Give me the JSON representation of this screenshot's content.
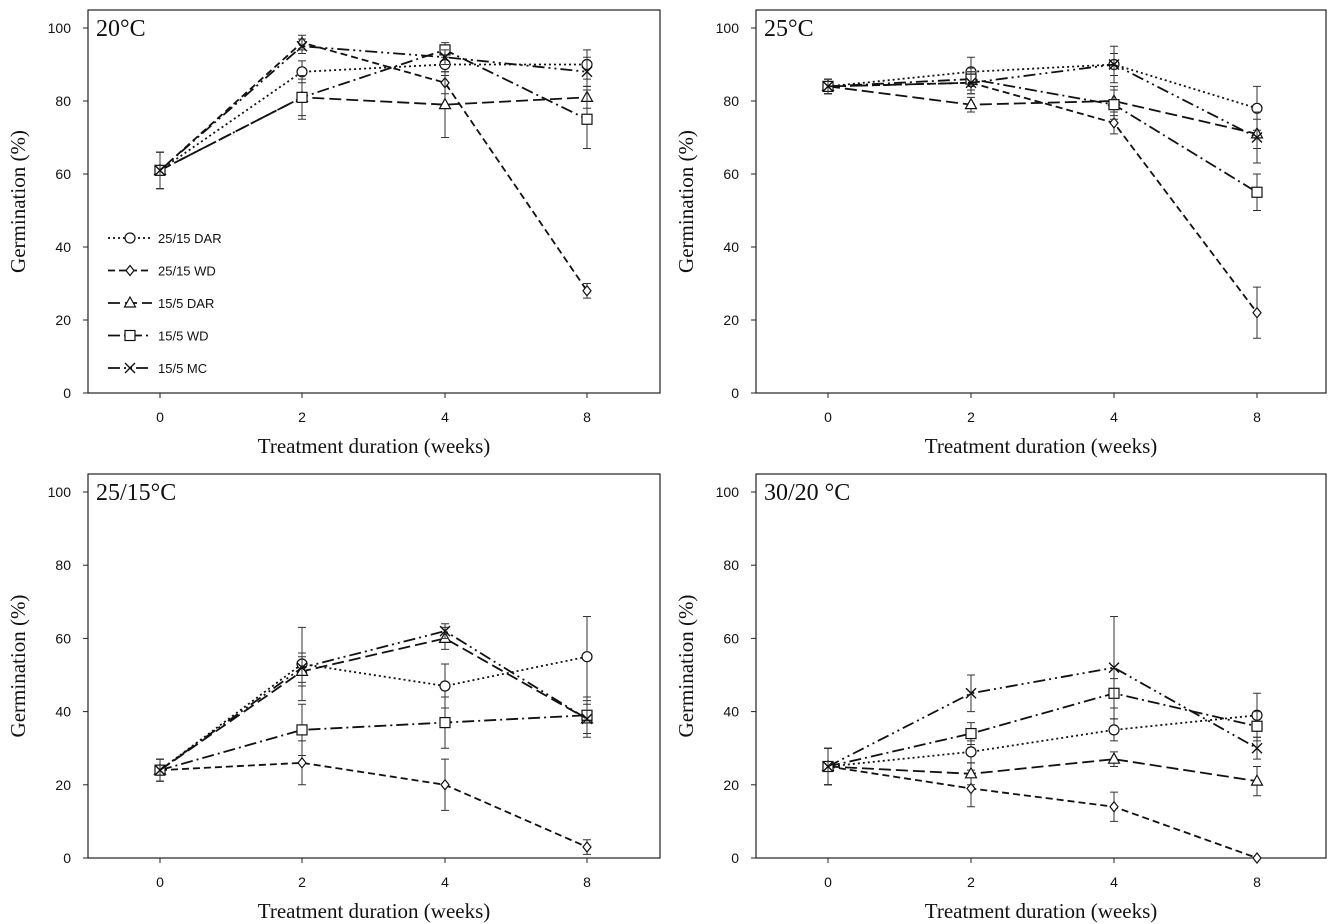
{
  "chart_data": [
    {
      "type": "line",
      "title": "20°C",
      "xlabel": "Treatment duration (weeks)",
      "ylabel": "Germination (%)",
      "categories": [
        "0",
        "2",
        "4",
        "8"
      ],
      "ylim": [
        0,
        100
      ],
      "yticks": [
        "0",
        "20",
        "40",
        "60",
        "80",
        "100"
      ],
      "legend": "left",
      "series": [
        {
          "name": "25/15 DAR",
          "marker": "circle",
          "dash": "dot",
          "values": [
            61,
            88,
            90,
            90
          ],
          "errors": [
            5,
            3,
            3,
            4
          ]
        },
        {
          "name": "25/15 WD",
          "marker": "diamond",
          "dash": "dash",
          "values": [
            61,
            96,
            85,
            28
          ],
          "errors": [
            5,
            2,
            3,
            2
          ]
        },
        {
          "name": "15/5 DAR",
          "marker": "triangle",
          "dash": "longdash",
          "values": [
            61,
            81,
            79,
            81
          ],
          "errors": [
            5,
            6,
            9,
            3
          ]
        },
        {
          "name": "15/5 WD",
          "marker": "square",
          "dash": "dashdot",
          "values": [
            61,
            81,
            94,
            75
          ],
          "errors": [
            5,
            5,
            2,
            8
          ]
        },
        {
          "name": "15/5 MC",
          "marker": "x",
          "dash": "dashdotdot",
          "values": [
            61,
            95,
            92,
            88
          ],
          "errors": [
            5,
            2,
            2,
            4
          ]
        }
      ]
    },
    {
      "type": "line",
      "title": "25°C",
      "xlabel": "Treatment duration (weeks)",
      "ylabel": "Germination (%)",
      "categories": [
        "0",
        "2",
        "4",
        "8"
      ],
      "ylim": [
        0,
        100
      ],
      "yticks": [
        "0",
        "20",
        "40",
        "60",
        "80",
        "100"
      ],
      "series": [
        {
          "name": "25/15 DAR",
          "marker": "circle",
          "dash": "dot",
          "values": [
            84,
            88,
            90,
            78
          ],
          "errors": [
            2,
            4,
            5,
            6
          ]
        },
        {
          "name": "25/15 WD",
          "marker": "diamond",
          "dash": "dash",
          "values": [
            84,
            85,
            74,
            22
          ],
          "errors": [
            2,
            3,
            3,
            7
          ]
        },
        {
          "name": "15/5 DAR",
          "marker": "triangle",
          "dash": "longdash",
          "values": [
            84,
            79,
            80,
            71
          ],
          "errors": [
            2,
            2,
            4,
            4
          ]
        },
        {
          "name": "15/5 WD",
          "marker": "square",
          "dash": "dashdot",
          "values": [
            84,
            86,
            79,
            55
          ],
          "errors": [
            2,
            3,
            4,
            5
          ]
        },
        {
          "name": "15/5 MC",
          "marker": "x",
          "dash": "dashdotdot",
          "values": [
            84,
            85,
            90,
            70
          ],
          "errors": [
            2,
            3,
            3,
            7
          ]
        }
      ]
    },
    {
      "type": "line",
      "title": "25/15°C",
      "xlabel": "Treatment duration (weeks)",
      "ylabel": "Germination (%)",
      "categories": [
        "0",
        "2",
        "4",
        "8"
      ],
      "ylim": [
        0,
        100
      ],
      "yticks": [
        "0",
        "20",
        "40",
        "60",
        "80",
        "100"
      ],
      "series": [
        {
          "name": "25/15 DAR",
          "marker": "circle",
          "dash": "dot",
          "values": [
            24,
            53,
            47,
            55
          ],
          "errors": [
            3,
            10,
            6,
            11
          ]
        },
        {
          "name": "25/15 WD",
          "marker": "diamond",
          "dash": "dash",
          "values": [
            24,
            26,
            20,
            3
          ],
          "errors": [
            3,
            6,
            7,
            2
          ]
        },
        {
          "name": "15/5 DAR",
          "marker": "triangle",
          "dash": "longdash",
          "values": [
            24,
            51,
            60,
            38
          ],
          "errors": [
            3,
            4,
            3,
            4
          ]
        },
        {
          "name": "15/5 WD",
          "marker": "square",
          "dash": "dashdot",
          "values": [
            24,
            35,
            37,
            39
          ],
          "errors": [
            3,
            7,
            7,
            5
          ]
        },
        {
          "name": "15/5 MC",
          "marker": "x",
          "dash": "dashdotdot",
          "values": [
            24,
            52,
            62,
            38
          ],
          "errors": [
            3,
            4,
            2,
            5
          ]
        }
      ]
    },
    {
      "type": "line",
      "title": "30/20 °C",
      "xlabel": "Treatment duration (weeks)",
      "ylabel": "Germination (%)",
      "categories": [
        "0",
        "2",
        "4",
        "8"
      ],
      "ylim": [
        0,
        100
      ],
      "yticks": [
        "0",
        "20",
        "40",
        "60",
        "80",
        "100"
      ],
      "series": [
        {
          "name": "25/15 DAR",
          "marker": "circle",
          "dash": "dot",
          "values": [
            25,
            29,
            35,
            39
          ],
          "errors": [
            5,
            3,
            3,
            6
          ]
        },
        {
          "name": "25/15 WD",
          "marker": "diamond",
          "dash": "dash",
          "values": [
            25,
            19,
            14,
            0
          ],
          "errors": [
            5,
            5,
            4,
            0
          ]
        },
        {
          "name": "15/5 DAR",
          "marker": "triangle",
          "dash": "longdash",
          "values": [
            25,
            23,
            27,
            21
          ],
          "errors": [
            5,
            3,
            2,
            4
          ]
        },
        {
          "name": "15/5 WD",
          "marker": "square",
          "dash": "dashdot",
          "values": [
            25,
            34,
            45,
            36
          ],
          "errors": [
            5,
            3,
            4,
            4
          ]
        },
        {
          "name": "15/5 MC",
          "marker": "x",
          "dash": "dashdotdot",
          "values": [
            25,
            45,
            52,
            30
          ],
          "errors": [
            5,
            5,
            14,
            3
          ]
        }
      ]
    }
  ]
}
